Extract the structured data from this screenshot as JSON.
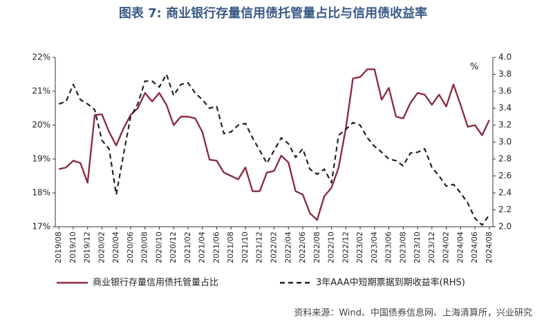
{
  "chart_data": {
    "type": "line",
    "title": "图表 7:  商业银行存量信用债托管量占比与信用债收益率",
    "categories": [
      "2019/08",
      null,
      "2019/10",
      null,
      "2019/12",
      null,
      "2020/02",
      null,
      "2020/04",
      null,
      "2020/06",
      null,
      "2020/08",
      null,
      "2020/10",
      null,
      "2020/12",
      null,
      "2021/02",
      null,
      "2021/04",
      null,
      "2021/06",
      null,
      "2021/08",
      null,
      "2021/10",
      null,
      "2021/12",
      null,
      "2022/02",
      null,
      "2022/04",
      null,
      "2022/06",
      null,
      "2022/08",
      null,
      "2022/10",
      null,
      "2022/12",
      null,
      "2023/02",
      null,
      "2023/04",
      null,
      "2023/06",
      null,
      "2023/08",
      null,
      "2023/10",
      null,
      "2023/12",
      null,
      "2024/02",
      null,
      "2024/04",
      null,
      "2024/06",
      null,
      "2024/08"
    ],
    "series": [
      {
        "name": "商业银行存量信用债托管量占比",
        "color": "#8c2d40",
        "dash": false,
        "values": [
          18.7,
          18.75,
          18.95,
          18.88,
          18.3,
          20.3,
          20.32,
          19.8,
          19.4,
          19.9,
          20.3,
          20.5,
          20.95,
          20.7,
          20.95,
          20.6,
          20.0,
          20.25,
          20.25,
          20.2,
          19.8,
          18.98,
          18.95,
          18.6,
          18.5,
          18.4,
          18.75,
          18.05,
          18.05,
          18.6,
          18.65,
          19.1,
          18.9,
          18.05,
          17.95,
          17.4,
          17.2,
          17.9,
          18.15,
          18.75,
          19.9,
          21.38,
          21.42,
          21.65,
          21.65,
          20.75,
          21.1,
          20.25,
          20.2,
          20.65,
          20.95,
          20.9,
          20.6,
          20.9,
          20.55,
          21.2,
          20.6,
          19.95,
          20.0,
          19.7,
          20.15
        ]
      },
      {
        "name": "3年AAA中短期票据到期收益率(RHS)",
        "color": "#222222",
        "dash": true,
        "axis": "y2",
        "values": [
          3.45,
          3.48,
          3.68,
          3.5,
          3.45,
          3.38,
          3.02,
          2.92,
          2.38,
          2.85,
          3.3,
          3.45,
          3.72,
          3.72,
          3.65,
          3.8,
          3.55,
          3.68,
          3.7,
          3.58,
          3.5,
          3.4,
          3.42,
          3.1,
          3.12,
          3.2,
          3.22,
          3.05,
          2.9,
          2.75,
          2.9,
          3.05,
          2.98,
          2.82,
          2.92,
          2.68,
          2.62,
          2.68,
          2.52,
          3.08,
          3.15,
          3.23,
          3.2,
          3.05,
          2.95,
          2.88,
          2.8,
          2.78,
          2.72,
          2.87,
          2.88,
          2.92,
          2.7,
          2.6,
          2.48,
          2.5,
          2.4,
          2.28,
          2.1,
          2.02,
          2.14
        ]
      }
    ],
    "ylim": [
      17,
      22
    ],
    "yticks": [
      {
        "value": 17,
        "label": "17%"
      },
      {
        "value": 18,
        "label": "18%"
      },
      {
        "value": 19,
        "label": "19%"
      },
      {
        "value": 20,
        "label": "20%"
      },
      {
        "value": 21,
        "label": "21%"
      },
      {
        "value": 22,
        "label": "22%"
      }
    ],
    "y2lim": [
      2,
      4
    ],
    "y2ticks": [
      {
        "value": 2,
        "label": "2.0"
      },
      {
        "value": 2.2,
        "label": "2.2"
      },
      {
        "value": 2.4,
        "label": "2.4"
      },
      {
        "value": 2.6,
        "label": "2.6"
      },
      {
        "value": 2.8,
        "label": "2.8"
      },
      {
        "value": 3,
        "label": "3.0"
      },
      {
        "value": 3.2,
        "label": "3.2"
      },
      {
        "value": 3.4,
        "label": "3.4"
      },
      {
        "value": 3.6,
        "label": "3.6"
      },
      {
        "value": 3.8,
        "label": "3.8"
      },
      {
        "value": 4,
        "label": "4.0"
      }
    ],
    "y2label": "%",
    "grid": false,
    "source": "资料来源：Wind、中国债券信息网、上海清算所，兴业研究"
  }
}
